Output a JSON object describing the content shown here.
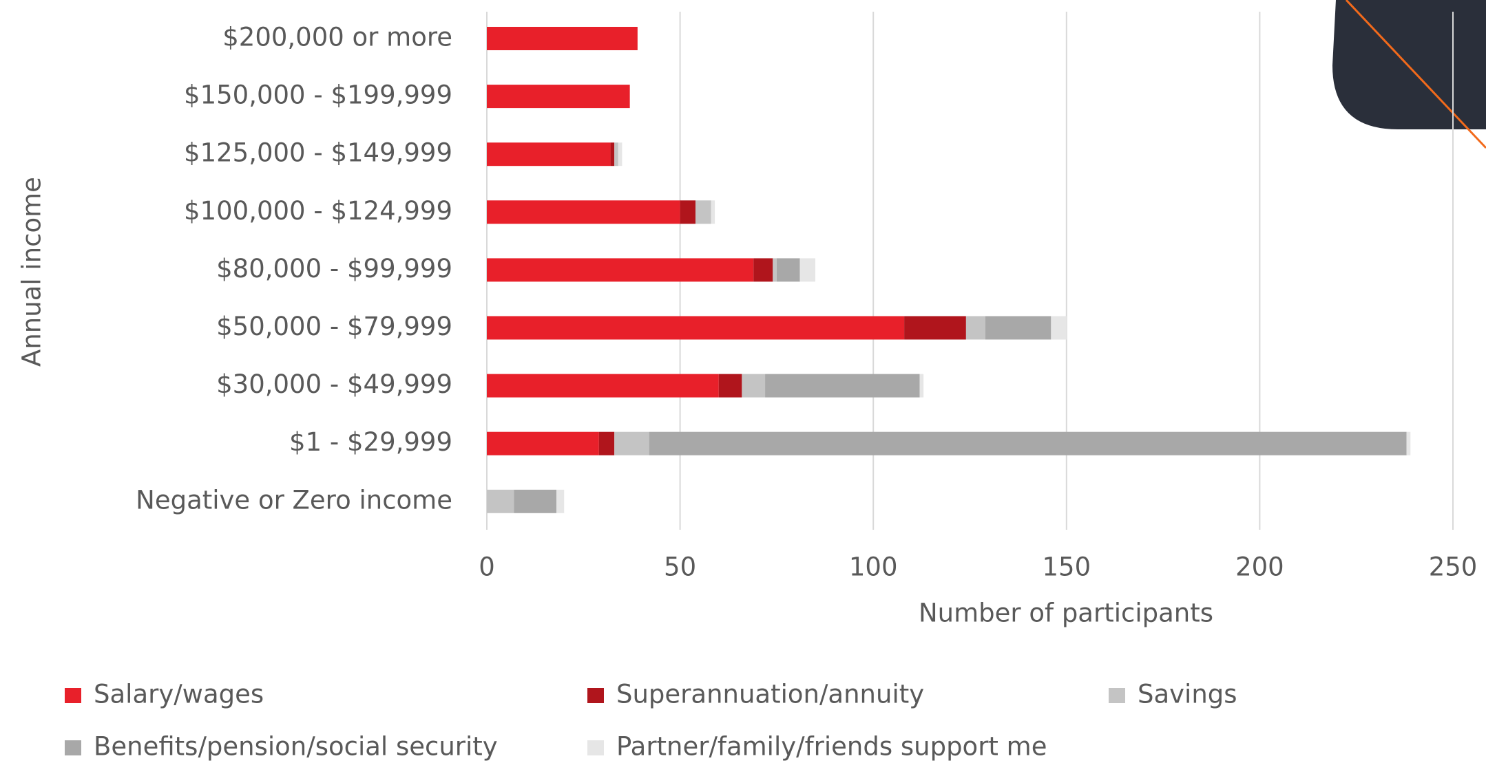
{
  "chart_data": {
    "type": "stacked-bar-horizontal",
    "xlabel": "Number of participants",
    "ylabel": "Annual income",
    "categories": [
      "$200,000 or more",
      "$150,000 - $199,999",
      "$125,000 - $149,999",
      "$100,000 - $124,999",
      "$80,000 - $99,999",
      "$50,000 - $79,999",
      "$30,000 - $49,999",
      "$1 - $29,999",
      "Negative or Zero income"
    ],
    "series": [
      {
        "name": "Salary/wages",
        "color": "#e8202a",
        "values": [
          39,
          37,
          32,
          50,
          69,
          108,
          60,
          29,
          0
        ]
      },
      {
        "name": "Superannuation/annuity",
        "color": "#b0151c",
        "values": [
          0,
          0,
          1,
          4,
          5,
          16,
          6,
          4,
          0
        ]
      },
      {
        "name": "Savings",
        "color": "#c4c4c4",
        "values": [
          0,
          0,
          1,
          4,
          1,
          5,
          6,
          9,
          7
        ]
      },
      {
        "name": "Benefits/pension/social security",
        "color": "#a8a8a8",
        "values": [
          0,
          0,
          0,
          0,
          6,
          17,
          40,
          196,
          11
        ]
      },
      {
        "name": "Partner/family/friends support me",
        "color": "#e6e6e6",
        "values": [
          0,
          0,
          1,
          1,
          4,
          4,
          1,
          1,
          2
        ]
      }
    ],
    "xlim": [
      0,
      250
    ],
    "xticks": [
      0,
      50,
      100,
      150,
      200,
      250
    ],
    "grid": true
  }
}
